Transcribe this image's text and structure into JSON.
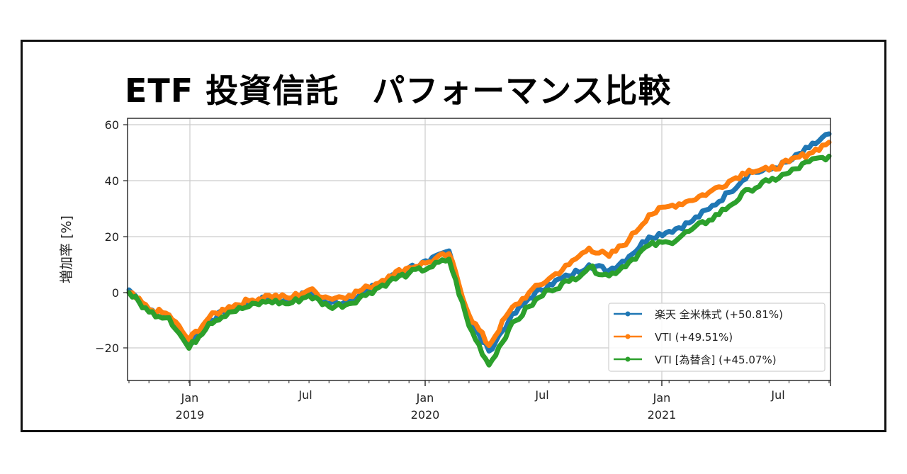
{
  "title": "ETF 投資信託　パフォーマンス比較",
  "colors": {
    "series_0": "#1f77b4",
    "series_1": "#ff7f0e",
    "series_2": "#2ca02c",
    "grid": "#cccccc",
    "frame": "#111111"
  },
  "chart_data": {
    "type": "line",
    "title": "ETF 投資信託　パフォーマンス比較",
    "xlabel": "",
    "ylabel": "増加率 [%]",
    "ylim": [
      -31,
      62
    ],
    "yticks": [
      -20,
      0,
      20,
      40,
      60
    ],
    "ytick_labels": [
      "−20",
      "0",
      "20",
      "40",
      "60"
    ],
    "xticks": [
      {
        "label": "Jan",
        "sub": "2019"
      },
      {
        "label": "Jul",
        "sub": ""
      },
      {
        "label": "Jan",
        "sub": "2020"
      },
      {
        "label": "Jul",
        "sub": ""
      },
      {
        "label": "Jan",
        "sub": "2021"
      },
      {
        "label": "Jul",
        "sub": ""
      }
    ],
    "grid": true,
    "legend_position": "lower right",
    "x": [
      "2018-10",
      "2018-11",
      "2018-12",
      "2019-01",
      "2019-02",
      "2019-03",
      "2019-04",
      "2019-05",
      "2019-06",
      "2019-07",
      "2019-08",
      "2019-09",
      "2019-10",
      "2019-11",
      "2019-12",
      "2020-01",
      "2020-02",
      "2020-03",
      "2020-04",
      "2020-05",
      "2020-06",
      "2020-07",
      "2020-08",
      "2020-09",
      "2020-10",
      "2020-11",
      "2020-12",
      "2021-01",
      "2021-02",
      "2021-03",
      "2021-04",
      "2021-05",
      "2021-06",
      "2021-07",
      "2021-08",
      "2021-09"
    ],
    "series": [
      {
        "name": "楽天 全米株式 (+50.81%)",
        "color": "#1f77b4",
        "values": [
          1,
          -6,
          -8,
          -19,
          -10,
          -6,
          -4,
          -2,
          -3,
          0,
          -4,
          -3,
          1,
          5,
          9,
          11,
          15,
          -10,
          -21,
          -10,
          -2,
          3,
          6,
          10,
          8,
          13,
          20,
          22,
          25,
          30,
          36,
          43,
          44,
          47,
          52,
          57
        ]
      },
      {
        "name": "VTI (+49.51%)",
        "color": "#ff7f0e",
        "values": [
          0,
          -6,
          -8,
          -17,
          -9,
          -5,
          -3,
          -1,
          -2,
          1,
          -2,
          -1,
          2,
          6,
          9,
          11,
          14,
          -8,
          -19,
          -7,
          0,
          5,
          10,
          16,
          13,
          19,
          28,
          31,
          33,
          36,
          40,
          44,
          44,
          47,
          50,
          54
        ]
      },
      {
        "name": "VTI [為替含] (+45.07%)",
        "color": "#2ca02c",
        "values": [
          0,
          -7,
          -9,
          -20,
          -11,
          -7,
          -5,
          -3,
          -4,
          -1,
          -5,
          -4,
          0,
          4,
          7,
          9,
          12,
          -12,
          -26,
          -13,
          -5,
          1,
          4,
          9,
          6,
          11,
          17,
          18,
          22,
          26,
          31,
          37,
          40,
          43,
          47,
          49
        ]
      }
    ]
  },
  "legend": {
    "items": [
      {
        "label": "楽天 全米株式 (+50.81%)",
        "color": "#1f77b4"
      },
      {
        "label": "VTI (+49.51%)",
        "color": "#ff7f0e"
      },
      {
        "label": "VTI [為替含] (+45.07%)",
        "color": "#2ca02c"
      }
    ]
  },
  "axis": {
    "ylabel": "増加率 [%]",
    "yticks": [
      "60",
      "40",
      "20",
      "0",
      "−20"
    ],
    "xticks": [
      {
        "label": "Jan",
        "sub": "2019"
      },
      {
        "label": "Jul",
        "sub": ""
      },
      {
        "label": "Jan",
        "sub": "2020"
      },
      {
        "label": "Jul",
        "sub": ""
      },
      {
        "label": "Jan",
        "sub": "2021"
      },
      {
        "label": "Jul",
        "sub": ""
      }
    ]
  }
}
